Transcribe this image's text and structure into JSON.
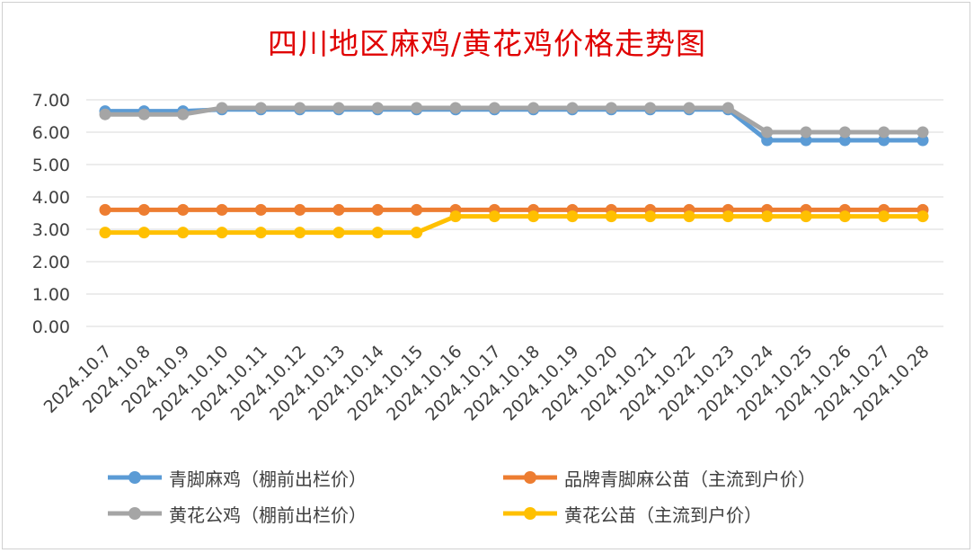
{
  "chart_data": {
    "type": "line",
    "title": "四川地区麻鸡/黄花鸡价格走势图",
    "xlabel": "",
    "ylabel": "",
    "ylim": [
      0,
      7
    ],
    "grid": true,
    "legend_position": "bottom",
    "y_ticks": [
      "0.00",
      "1.00",
      "2.00",
      "3.00",
      "4.00",
      "5.00",
      "6.00",
      "7.00"
    ],
    "categories": [
      "2024.10.7",
      "2024.10.8",
      "2024.10.9",
      "2024.10.10",
      "2024.10.11",
      "2024.10.12",
      "2024.10.13",
      "2024.10.14",
      "2024.10.15",
      "2024.10.16",
      "2024.10.17",
      "2024.10.18",
      "2024.10.19",
      "2024.10.20",
      "2024.10.21",
      "2024.10.22",
      "2024.10.23",
      "2024.10.24",
      "2024.10.25",
      "2024.10.26",
      "2024.10.27",
      "2024.10.28"
    ],
    "series": [
      {
        "name": "青脚麻鸡（棚前出栏价）",
        "color": "#5b9bd5",
        "values": [
          6.65,
          6.65,
          6.65,
          6.7,
          6.7,
          6.7,
          6.7,
          6.7,
          6.7,
          6.7,
          6.7,
          6.7,
          6.7,
          6.7,
          6.7,
          6.7,
          6.7,
          5.75,
          5.75,
          5.75,
          5.75,
          5.75
        ]
      },
      {
        "name": "品牌青脚麻公苗（主流到户价）",
        "color": "#ed7d31",
        "values": [
          3.6,
          3.6,
          3.6,
          3.6,
          3.6,
          3.6,
          3.6,
          3.6,
          3.6,
          3.6,
          3.6,
          3.6,
          3.6,
          3.6,
          3.6,
          3.6,
          3.6,
          3.6,
          3.6,
          3.6,
          3.6,
          3.6
        ]
      },
      {
        "name": "黄花公鸡（棚前出栏价）",
        "color": "#a5a5a5",
        "values": [
          6.55,
          6.55,
          6.55,
          6.75,
          6.75,
          6.75,
          6.75,
          6.75,
          6.75,
          6.75,
          6.75,
          6.75,
          6.75,
          6.75,
          6.75,
          6.75,
          6.75,
          6.0,
          6.0,
          6.0,
          6.0,
          6.0
        ]
      },
      {
        "name": "黄花公苗（主流到户价）",
        "color": "#ffc000",
        "values": [
          2.9,
          2.9,
          2.9,
          2.9,
          2.9,
          2.9,
          2.9,
          2.9,
          2.9,
          3.4,
          3.4,
          3.4,
          3.4,
          3.4,
          3.4,
          3.4,
          3.4,
          3.4,
          3.4,
          3.4,
          3.4,
          3.4
        ]
      }
    ]
  }
}
